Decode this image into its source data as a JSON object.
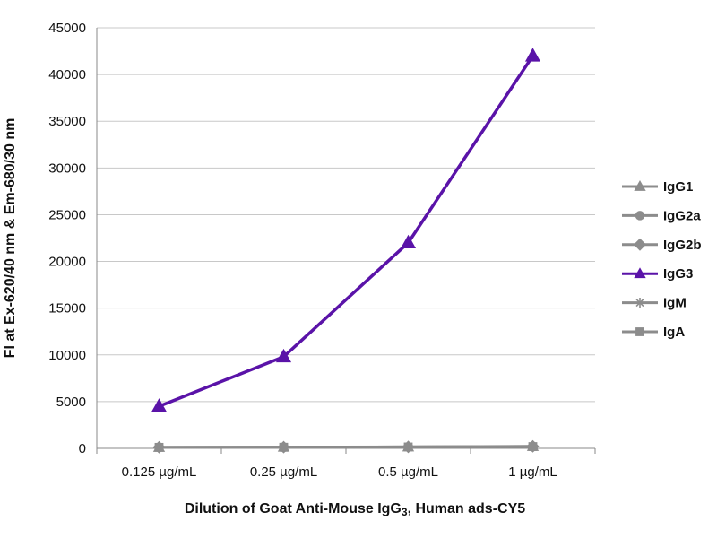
{
  "chart_data": {
    "type": "line",
    "title": "",
    "xlabel": "Dilution of Goat Anti-Mouse IgG3, Human ads-CY5",
    "ylabel": "FI at Ex-620/40 nm & Em-680/30 nm",
    "categories": [
      "0.125 µg/mL",
      "0.25 µg/mL",
      "0.5 µg/mL",
      "1 µg/mL"
    ],
    "ylim": [
      0,
      45000
    ],
    "yticks": [
      0,
      5000,
      10000,
      15000,
      20000,
      25000,
      30000,
      35000,
      40000,
      45000
    ],
    "grid": "horizontal",
    "legend": "right",
    "series": [
      {
        "name": "IgG1",
        "marker": "triangle",
        "color": "#8c8c8c",
        "values": [
          100,
          120,
          150,
          200
        ]
      },
      {
        "name": "IgG2a",
        "marker": "circle",
        "color": "#8c8c8c",
        "values": [
          100,
          110,
          140,
          180
        ]
      },
      {
        "name": "IgG2b",
        "marker": "diamond",
        "color": "#8c8c8c",
        "values": [
          120,
          130,
          160,
          220
        ]
      },
      {
        "name": "IgG3",
        "marker": "triangle",
        "color": "#5a13a8",
        "values": [
          4500,
          9800,
          22000,
          42000
        ]
      },
      {
        "name": "IgM",
        "marker": "star",
        "color": "#8c8c8c",
        "values": [
          90,
          100,
          130,
          170
        ]
      },
      {
        "name": "IgA",
        "marker": "square",
        "color": "#8c8c8c",
        "values": [
          110,
          120,
          150,
          190
        ]
      }
    ]
  }
}
